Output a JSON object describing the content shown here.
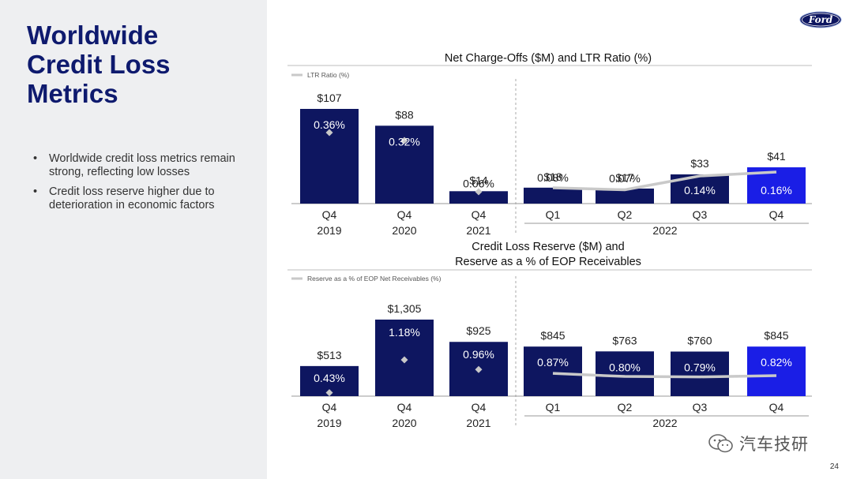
{
  "slide": {
    "title_lines": [
      "Worldwide",
      "Credit Loss",
      "Metrics"
    ],
    "bullets": [
      "Worldwide credit loss metrics remain strong, reflecting low losses",
      "Credit loss reserve higher due to deterioration in economic factors"
    ],
    "page_number": "24",
    "logo_text": "Ford",
    "watermark": "汽车技研"
  },
  "colors": {
    "navy": "#0e1660",
    "highlight": "#1a1ee6",
    "line": "#c9c9c9",
    "text": "#333333",
    "title": "#0e1a6e"
  },
  "chart_data": [
    {
      "type": "bar",
      "title": "Net Charge-Offs ($M) and LTR Ratio (%)",
      "categories": [
        "Q4\n2019",
        "Q4\n2020",
        "Q4\n2021",
        "Q1",
        "Q2",
        "Q3",
        "Q4"
      ],
      "group_label": "2022",
      "bar_labels": [
        "$107",
        "$88",
        "$14",
        "$18",
        "$17",
        "$33",
        "$41"
      ],
      "values": [
        107,
        88,
        14,
        18,
        17,
        33,
        41
      ],
      "ratio_labels": [
        "0.36%",
        "0.32%",
        "0.06%",
        "0.08%",
        "0.07%",
        "0.14%",
        "0.16%"
      ],
      "ratio_values": [
        0.36,
        0.32,
        0.06,
        0.08,
        0.07,
        0.14,
        0.16
      ],
      "legend": "LTR Ratio (%)",
      "highlight_index": 6
    },
    {
      "type": "bar",
      "title": "Credit Loss Reserve ($M) and Reserve as a % of EOP Receivables",
      "title_lines": [
        "Credit Loss Reserve ($M) and",
        "Reserve as a % of EOP Receivables"
      ],
      "categories": [
        "Q4\n2019",
        "Q4\n2020",
        "Q4\n2021",
        "Q1",
        "Q2",
        "Q3",
        "Q4"
      ],
      "group_label": "2022",
      "bar_labels": [
        "$513",
        "$1,305",
        "$925",
        "$845",
        "$763",
        "$760",
        "$845"
      ],
      "values": [
        513,
        1305,
        925,
        845,
        763,
        760,
        845
      ],
      "ratio_labels": [
        "0.43%",
        "1.18%",
        "0.96%",
        "0.87%",
        "0.80%",
        "0.79%",
        "0.82%"
      ],
      "ratio_values": [
        0.43,
        1.18,
        0.96,
        0.87,
        0.8,
        0.79,
        0.82
      ],
      "legend": "Reserve as a % of EOP Net Receivables (%)",
      "highlight_index": 6
    }
  ]
}
